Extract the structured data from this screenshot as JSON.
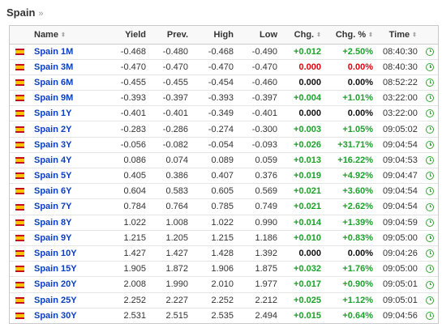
{
  "header": {
    "title": "Spain",
    "chevron": "»"
  },
  "table": {
    "columns": [
      "Name",
      "Yield",
      "Prev.",
      "High",
      "Low",
      "Chg.",
      "Chg. %",
      "Time"
    ],
    "rows": [
      {
        "name": "Spain 1M",
        "yield": "-0.468",
        "prev": "-0.480",
        "high": "-0.468",
        "low": "-0.490",
        "chg": "+0.012",
        "chgpct": "+2.50%",
        "time": "08:40:30",
        "dir": "pos"
      },
      {
        "name": "Spain 3M",
        "yield": "-0.470",
        "prev": "-0.470",
        "high": "-0.470",
        "low": "-0.470",
        "chg": "0.000",
        "chgpct": "0.00%",
        "time": "08:40:30",
        "dir": "neg"
      },
      {
        "name": "Spain 6M",
        "yield": "-0.455",
        "prev": "-0.455",
        "high": "-0.454",
        "low": "-0.460",
        "chg": "0.000",
        "chgpct": "0.00%",
        "time": "08:52:22",
        "dir": "zero"
      },
      {
        "name": "Spain 9M",
        "yield": "-0.393",
        "prev": "-0.397",
        "high": "-0.393",
        "low": "-0.397",
        "chg": "+0.004",
        "chgpct": "+1.01%",
        "time": "03:22:00",
        "dir": "pos"
      },
      {
        "name": "Spain 1Y",
        "yield": "-0.401",
        "prev": "-0.401",
        "high": "-0.349",
        "low": "-0.401",
        "chg": "0.000",
        "chgpct": "0.00%",
        "time": "03:22:00",
        "dir": "zero"
      },
      {
        "name": "Spain 2Y",
        "yield": "-0.283",
        "prev": "-0.286",
        "high": "-0.274",
        "low": "-0.300",
        "chg": "+0.003",
        "chgpct": "+1.05%",
        "time": "09:05:02",
        "dir": "pos"
      },
      {
        "name": "Spain 3Y",
        "yield": "-0.056",
        "prev": "-0.082",
        "high": "-0.054",
        "low": "-0.093",
        "chg": "+0.026",
        "chgpct": "+31.71%",
        "time": "09:04:54",
        "dir": "pos"
      },
      {
        "name": "Spain 4Y",
        "yield": "0.086",
        "prev": "0.074",
        "high": "0.089",
        "low": "0.059",
        "chg": "+0.013",
        "chgpct": "+16.22%",
        "time": "09:04:53",
        "dir": "pos"
      },
      {
        "name": "Spain 5Y",
        "yield": "0.405",
        "prev": "0.386",
        "high": "0.407",
        "low": "0.376",
        "chg": "+0.019",
        "chgpct": "+4.92%",
        "time": "09:04:47",
        "dir": "pos"
      },
      {
        "name": "Spain 6Y",
        "yield": "0.604",
        "prev": "0.583",
        "high": "0.605",
        "low": "0.569",
        "chg": "+0.021",
        "chgpct": "+3.60%",
        "time": "09:04:54",
        "dir": "pos"
      },
      {
        "name": "Spain 7Y",
        "yield": "0.784",
        "prev": "0.764",
        "high": "0.785",
        "low": "0.749",
        "chg": "+0.021",
        "chgpct": "+2.62%",
        "time": "09:04:54",
        "dir": "pos"
      },
      {
        "name": "Spain 8Y",
        "yield": "1.022",
        "prev": "1.008",
        "high": "1.022",
        "low": "0.990",
        "chg": "+0.014",
        "chgpct": "+1.39%",
        "time": "09:04:59",
        "dir": "pos"
      },
      {
        "name": "Spain 9Y",
        "yield": "1.215",
        "prev": "1.205",
        "high": "1.215",
        "low": "1.186",
        "chg": "+0.010",
        "chgpct": "+0.83%",
        "time": "09:05:00",
        "dir": "pos"
      },
      {
        "name": "Spain 10Y",
        "yield": "1.427",
        "prev": "1.427",
        "high": "1.428",
        "low": "1.392",
        "chg": "0.000",
        "chgpct": "0.00%",
        "time": "09:04:26",
        "dir": "zero"
      },
      {
        "name": "Spain 15Y",
        "yield": "1.905",
        "prev": "1.872",
        "high": "1.906",
        "low": "1.875",
        "chg": "+0.032",
        "chgpct": "+1.76%",
        "time": "09:05:00",
        "dir": "pos"
      },
      {
        "name": "Spain 20Y",
        "yield": "2.008",
        "prev": "1.990",
        "high": "2.010",
        "low": "1.977",
        "chg": "+0.017",
        "chgpct": "+0.90%",
        "time": "09:05:01",
        "dir": "pos"
      },
      {
        "name": "Spain 25Y",
        "yield": "2.252",
        "prev": "2.227",
        "high": "2.252",
        "low": "2.212",
        "chg": "+0.025",
        "chgpct": "+1.12%",
        "time": "09:05:01",
        "dir": "pos"
      },
      {
        "name": "Spain 30Y",
        "yield": "2.531",
        "prev": "2.515",
        "high": "2.535",
        "low": "2.494",
        "chg": "+0.015",
        "chgpct": "+0.64%",
        "time": "09:04:56",
        "dir": "pos"
      }
    ]
  },
  "colors": {
    "positive": "#1da12a",
    "negative": "#e3000b",
    "neutral": "#111111",
    "link": "#0a3ec2"
  },
  "icons": {
    "flag": "spain-flag-icon",
    "time": "clock-icon",
    "sort": "sort-arrows-icon"
  }
}
